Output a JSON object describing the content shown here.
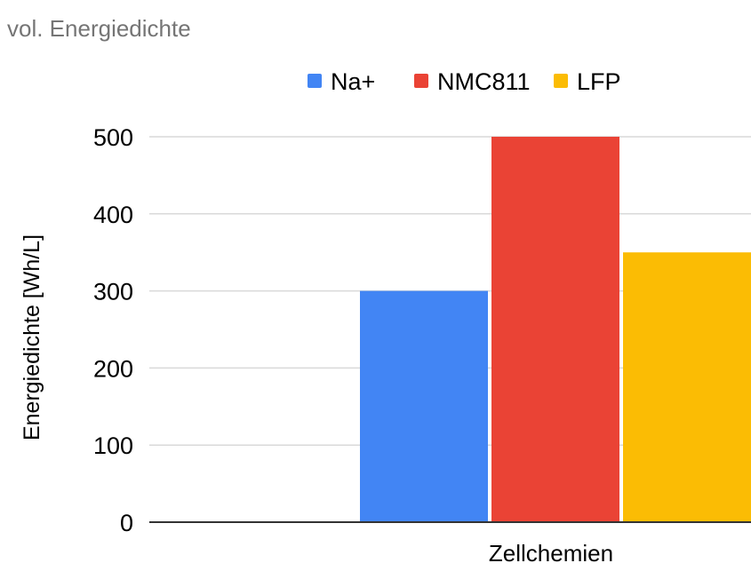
{
  "chart_data": {
    "type": "bar",
    "title": "vol. Energiedichte",
    "xlabel": "Zellchemien",
    "ylabel": "Energiedichte [Wh/L]",
    "categories": [
      ""
    ],
    "series": [
      {
        "name": "Na+",
        "values": [
          300
        ],
        "color": "#4285f4"
      },
      {
        "name": "NMC811",
        "values": [
          500
        ],
        "color": "#ea4335"
      },
      {
        "name": "LFP",
        "values": [
          350
        ],
        "color": "#fbbc04"
      }
    ],
    "ylim": [
      0,
      500
    ],
    "yticks": [
      "0",
      "100",
      "200",
      "300",
      "400",
      "500"
    ],
    "grid": true,
    "legend_position": "top-right"
  }
}
